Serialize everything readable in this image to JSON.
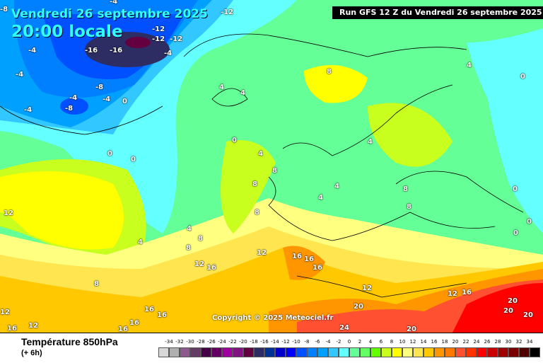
{
  "header": {
    "date": "Vendredi 26 septembre 2025",
    "time": "20:00 locale",
    "run": "Run GFS 12 Z du Vendredi 26 septembre 2025"
  },
  "copyright": "Copyright © 2025 Meteociel.fr",
  "footer": {
    "title": "Température 850hPa",
    "subtitle": "(+ 6h)"
  },
  "legend": {
    "labels": [
      "-34",
      "-32",
      "-30",
      "-28",
      "-26",
      "-24",
      "-22",
      "-20",
      "-18",
      "-16",
      "-14",
      "-12",
      "-10",
      "-8",
      "-6",
      "-4",
      "-2",
      "0",
      "2",
      "4",
      "6",
      "8",
      "10",
      "12",
      "14",
      "16",
      "18",
      "20",
      "22",
      "24",
      "26",
      "28",
      "30",
      "32",
      "34"
    ],
    "colors": [
      "#d8d8d8",
      "#b0b0b0",
      "#8c5a8c",
      "#643c64",
      "#460046",
      "#640064",
      "#a000a0",
      "#821482",
      "#640040",
      "#2d2d64",
      "#003296",
      "#0000c8",
      "#0000ff",
      "#0050ff",
      "#0080ff",
      "#00a0ff",
      "#32c8ff",
      "#64ffff",
      "#64ff96",
      "#64ff64",
      "#64ff00",
      "#c8ff1e",
      "#ffff00",
      "#ffff80",
      "#ffe650",
      "#ffc800",
      "#ff9600",
      "#ff7800",
      "#ff5032",
      "#ff3200",
      "#ff0000",
      "#c80000",
      "#a00000",
      "#780000",
      "#500000",
      "#000000"
    ]
  },
  "isotherm_labels": [
    "-8",
    "-4",
    "-12",
    "-12",
    "-12",
    "-12",
    "-16",
    "-16",
    "-4",
    "-4",
    "-4",
    "-4",
    "-8",
    "-4",
    "-8",
    "0",
    "-4",
    "0",
    "0",
    "0",
    "4",
    "4",
    "4",
    "8",
    "8",
    "4",
    "8",
    "4",
    "4",
    "8",
    "8",
    "8",
    "8",
    "4",
    "0",
    "0",
    "0",
    "0",
    "4",
    "4",
    "8",
    "12",
    "12",
    "16",
    "16",
    "16",
    "16",
    "16",
    "12",
    "8",
    "16",
    "16",
    "16",
    "20",
    "20",
    "24",
    "20",
    "20",
    "20",
    "16",
    "12",
    "16",
    "12",
    "12",
    "12"
  ]
}
